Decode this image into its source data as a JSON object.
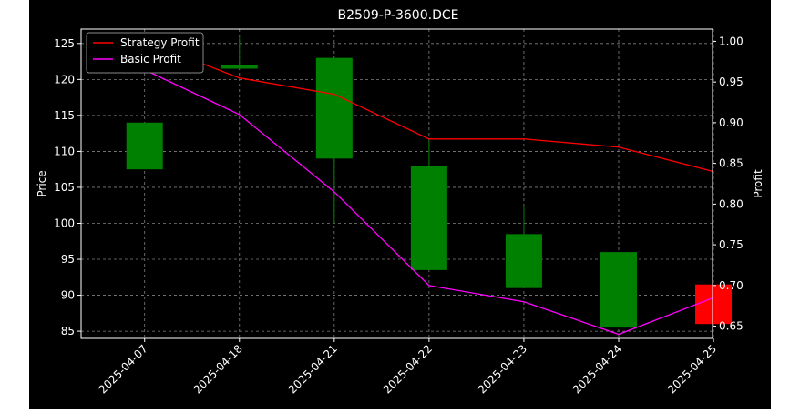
{
  "chart_data": {
    "type": "candlestick",
    "title": "B2509-P-3600.DCE",
    "xlabel": "",
    "ylabel": "Price",
    "y2label": "Profit",
    "categories": [
      "2025-04-07",
      "2025-04-18",
      "2025-04-21",
      "2025-04-22",
      "2025-04-23",
      "2025-04-24",
      "2025-04-25"
    ],
    "ohlc": [
      {
        "open": 107.5,
        "high": 114.0,
        "low": 107.5,
        "close": 114.0
      },
      {
        "open": 121.5,
        "high": 126.0,
        "low": 121.5,
        "close": 122.0
      },
      {
        "open": 109.0,
        "high": 123.0,
        "low": 100.0,
        "close": 123.0
      },
      {
        "open": 93.5,
        "high": 111.5,
        "low": 93.5,
        "close": 108.0
      },
      {
        "open": 91.0,
        "high": 102.5,
        "low": 91.0,
        "close": 98.5
      },
      {
        "open": 85.5,
        "high": 96.0,
        "low": 85.5,
        "close": 96.0
      },
      {
        "open": 91.5,
        "high": 91.5,
        "low": 86.0,
        "close": 86.0
      }
    ],
    "ylim": [
      84,
      127
    ],
    "yticks": [
      85,
      90,
      95,
      100,
      105,
      110,
      115,
      120,
      125
    ],
    "y2lim": [
      0.635,
      1.015
    ],
    "y2ticks": [
      "0.65",
      "0.70",
      "0.75",
      "0.80",
      "0.85",
      "0.90",
      "0.95",
      "1.00"
    ],
    "series": [
      {
        "name": "Strategy Profit",
        "color": "#ff0000",
        "axis": "right",
        "values": [
          1.0,
          0.955,
          0.935,
          0.88,
          0.88,
          0.87,
          0.84
        ]
      },
      {
        "name": "Basic Profit",
        "color": "#ff00ff",
        "axis": "right",
        "values": [
          0.965,
          0.91,
          0.815,
          0.7,
          0.68,
          0.64,
          0.685
        ]
      }
    ],
    "colors": {
      "up": "#008000",
      "down": "#ff0000",
      "background": "#000000",
      "text": "#ffffff",
      "grid": "#808080"
    },
    "grid": true,
    "legend_position": "top-left"
  }
}
